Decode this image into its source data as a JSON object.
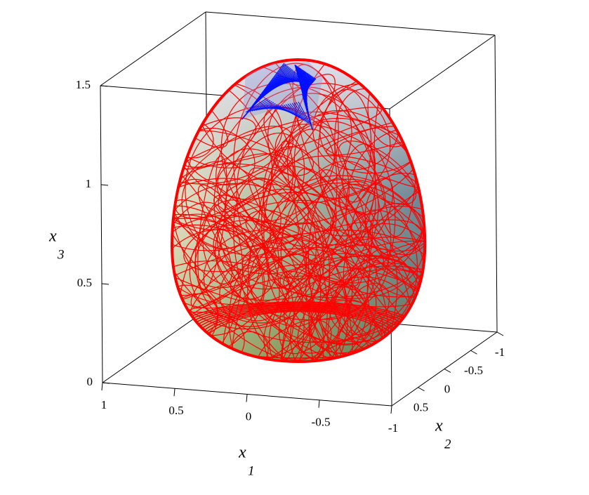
{
  "chart_data": {
    "type": "surface3d",
    "x1_label": {
      "text": "x",
      "subscript": "1"
    },
    "x2_label": {
      "text": "x",
      "subscript": "2"
    },
    "x3_label": {
      "text": "x",
      "subscript": "3"
    },
    "x1lim": [
      1,
      -1
    ],
    "x1ticks": [
      1,
      0.5,
      0,
      -0.5,
      -1
    ],
    "x2lim": [
      1,
      -1
    ],
    "x2ticks": [
      0.5,
      0,
      -0.5,
      -1
    ],
    "x3lim": [
      0,
      1.5
    ],
    "x3ticks": [
      0,
      0.5,
      1,
      1.5
    ]
  }
}
